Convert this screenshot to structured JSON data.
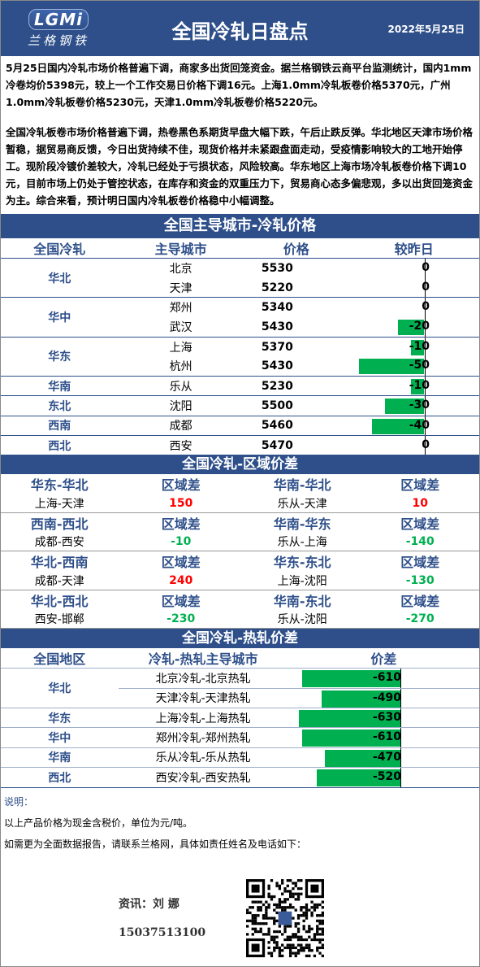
{
  "header": {
    "logo_mark": "LGMi",
    "logo_cn": "兰格钢铁",
    "title": "全国冷轧日盘点",
    "date": "2022年5月25日"
  },
  "para1": "5月25日国内冷轧市场价格普遍下调，商家多出货回笼资金。据兰格钢铁云商平台监测统计，国内1mm冷卷均价5398元，较上一个工作交易日价格下调16元。上海1.0mm冷轧板卷价格5370元，广州1.0mm冷轧板卷价格5230元，天津1.0mm冷轧板卷价格5220元。",
  "para2": "全国冷轧板卷市场价格普遍下调，热卷黑色系期货早盘大幅下跌，午后止跌反弹。华北地区天津市场价格暂稳，据贸易商反馈，今日出货持续不佳，现货价格并未紧跟盘面走动，受疫情影响较大的工地开始停工。现阶段冷镀价差较大，冷轧已经处于亏损状态，风险较高。华东地区上海市场冷轧板卷价格下调10元，目前市场上仍处于管控状态，在库存和资金的双重压力下，贸易商心态多偏悲观，多以出货回笼资金为主。综合来看，预计明日国内冷轧板卷价格稳中小幅调整。",
  "sec1": {
    "title": "全国主导城市-冷轧价格",
    "headers": [
      "全国冷轧",
      "主导城市",
      "价格",
      "较昨日"
    ],
    "rows": [
      {
        "region": "华北",
        "span": 2,
        "city": "北京",
        "price": "5530",
        "chg": 0,
        "chg_label": "0"
      },
      {
        "city": "天津",
        "price": "5220",
        "chg": 0,
        "chg_label": "0"
      },
      {
        "region": "华中",
        "span": 2,
        "city": "郑州",
        "price": "5340",
        "chg": 0,
        "chg_label": "0"
      },
      {
        "city": "武汉",
        "price": "5430",
        "chg": -20,
        "chg_label": "-20"
      },
      {
        "region": "华东",
        "span": 2,
        "city": "上海",
        "price": "5370",
        "chg": -10,
        "chg_label": "-10"
      },
      {
        "city": "杭州",
        "price": "5430",
        "chg": -50,
        "chg_label": "-50"
      },
      {
        "region": "华南",
        "span": 1,
        "city": "乐从",
        "price": "5230",
        "chg": -10,
        "chg_label": "-10"
      },
      {
        "region": "东北",
        "span": 1,
        "city": "沈阳",
        "price": "5500",
        "chg": -30,
        "chg_label": "-30"
      },
      {
        "region": "西南",
        "span": 1,
        "city": "成都",
        "price": "5460",
        "chg": -40,
        "chg_label": "-40"
      },
      {
        "region": "西北",
        "span": 1,
        "city": "西安",
        "price": "5470",
        "chg": 0,
        "chg_label": "0"
      }
    ]
  },
  "sec2": {
    "title": "全国冷轧-区域价差",
    "blocks": [
      {
        "l_head": "华东-华北",
        "l_sub": "区域差",
        "r_head": "华南-华北",
        "r_sub": "区域差",
        "l_pair": "上海-天津",
        "l_val": "150",
        "l_color": "red",
        "r_pair": "乐从-天津",
        "r_val": "10",
        "r_color": "red"
      },
      {
        "l_head": "西南-西北",
        "l_sub": "区域差",
        "r_head": "华南-华东",
        "r_sub": "区域差",
        "l_pair": "成都-西安",
        "l_val": "-10",
        "l_color": "green",
        "r_pair": "乐从-上海",
        "r_val": "-140",
        "r_color": "green"
      },
      {
        "l_head": "华北-西南",
        "l_sub": "区域差",
        "r_head": "华东-东北",
        "r_sub": "区域差",
        "l_pair": "成都-天津",
        "l_val": "240",
        "l_color": "red",
        "r_pair": "上海-沈阳",
        "r_val": "-130",
        "r_color": "green"
      },
      {
        "l_head": "华北-西北",
        "l_sub": "区域差",
        "r_head": "华南-东北",
        "r_sub": "区域差",
        "l_pair": "西安-邯郸",
        "l_val": "-230",
        "l_color": "green",
        "r_pair": "乐从-沈阳",
        "r_val": "-270",
        "r_color": "green"
      }
    ]
  },
  "sec3": {
    "title": "全国冷轧-热轧价差",
    "headers": [
      "全国地区",
      "冷轧-热轧主导城市",
      "价差"
    ],
    "rows": [
      {
        "region": "华北",
        "span": 2,
        "pair": "北京冷轧-北京热轧",
        "val": -610,
        "label": "-610"
      },
      {
        "pair": "天津冷轧-天津热轧",
        "val": -490,
        "label": "-490"
      },
      {
        "region": "华东",
        "span": 1,
        "pair": "上海冷轧-上海热轧",
        "val": -630,
        "label": "-630"
      },
      {
        "region": "华中",
        "span": 1,
        "pair": "郑州冷轧-郑州热轧",
        "val": -610,
        "label": "-610"
      },
      {
        "region": "华南",
        "span": 1,
        "pair": "乐从冷轧-乐从热轧",
        "val": -470,
        "label": "-470"
      },
      {
        "region": "西北",
        "span": 1,
        "pair": "西安冷轧-西安热轧",
        "val": -520,
        "label": "-520"
      }
    ]
  },
  "notes": {
    "label": "说明：",
    "line1": "以上产品价格为现金含税价，单位为元/吨。",
    "line2": "如需更为全面数据报告，请联系兰格网，具体如责任姓名及电话如下：",
    "contact_name": "资讯：刘 娜",
    "contact_phone": "15037513100"
  },
  "colors": {
    "brand": "#2e4f8a",
    "up": "#ff0000",
    "down": "#00b050"
  }
}
